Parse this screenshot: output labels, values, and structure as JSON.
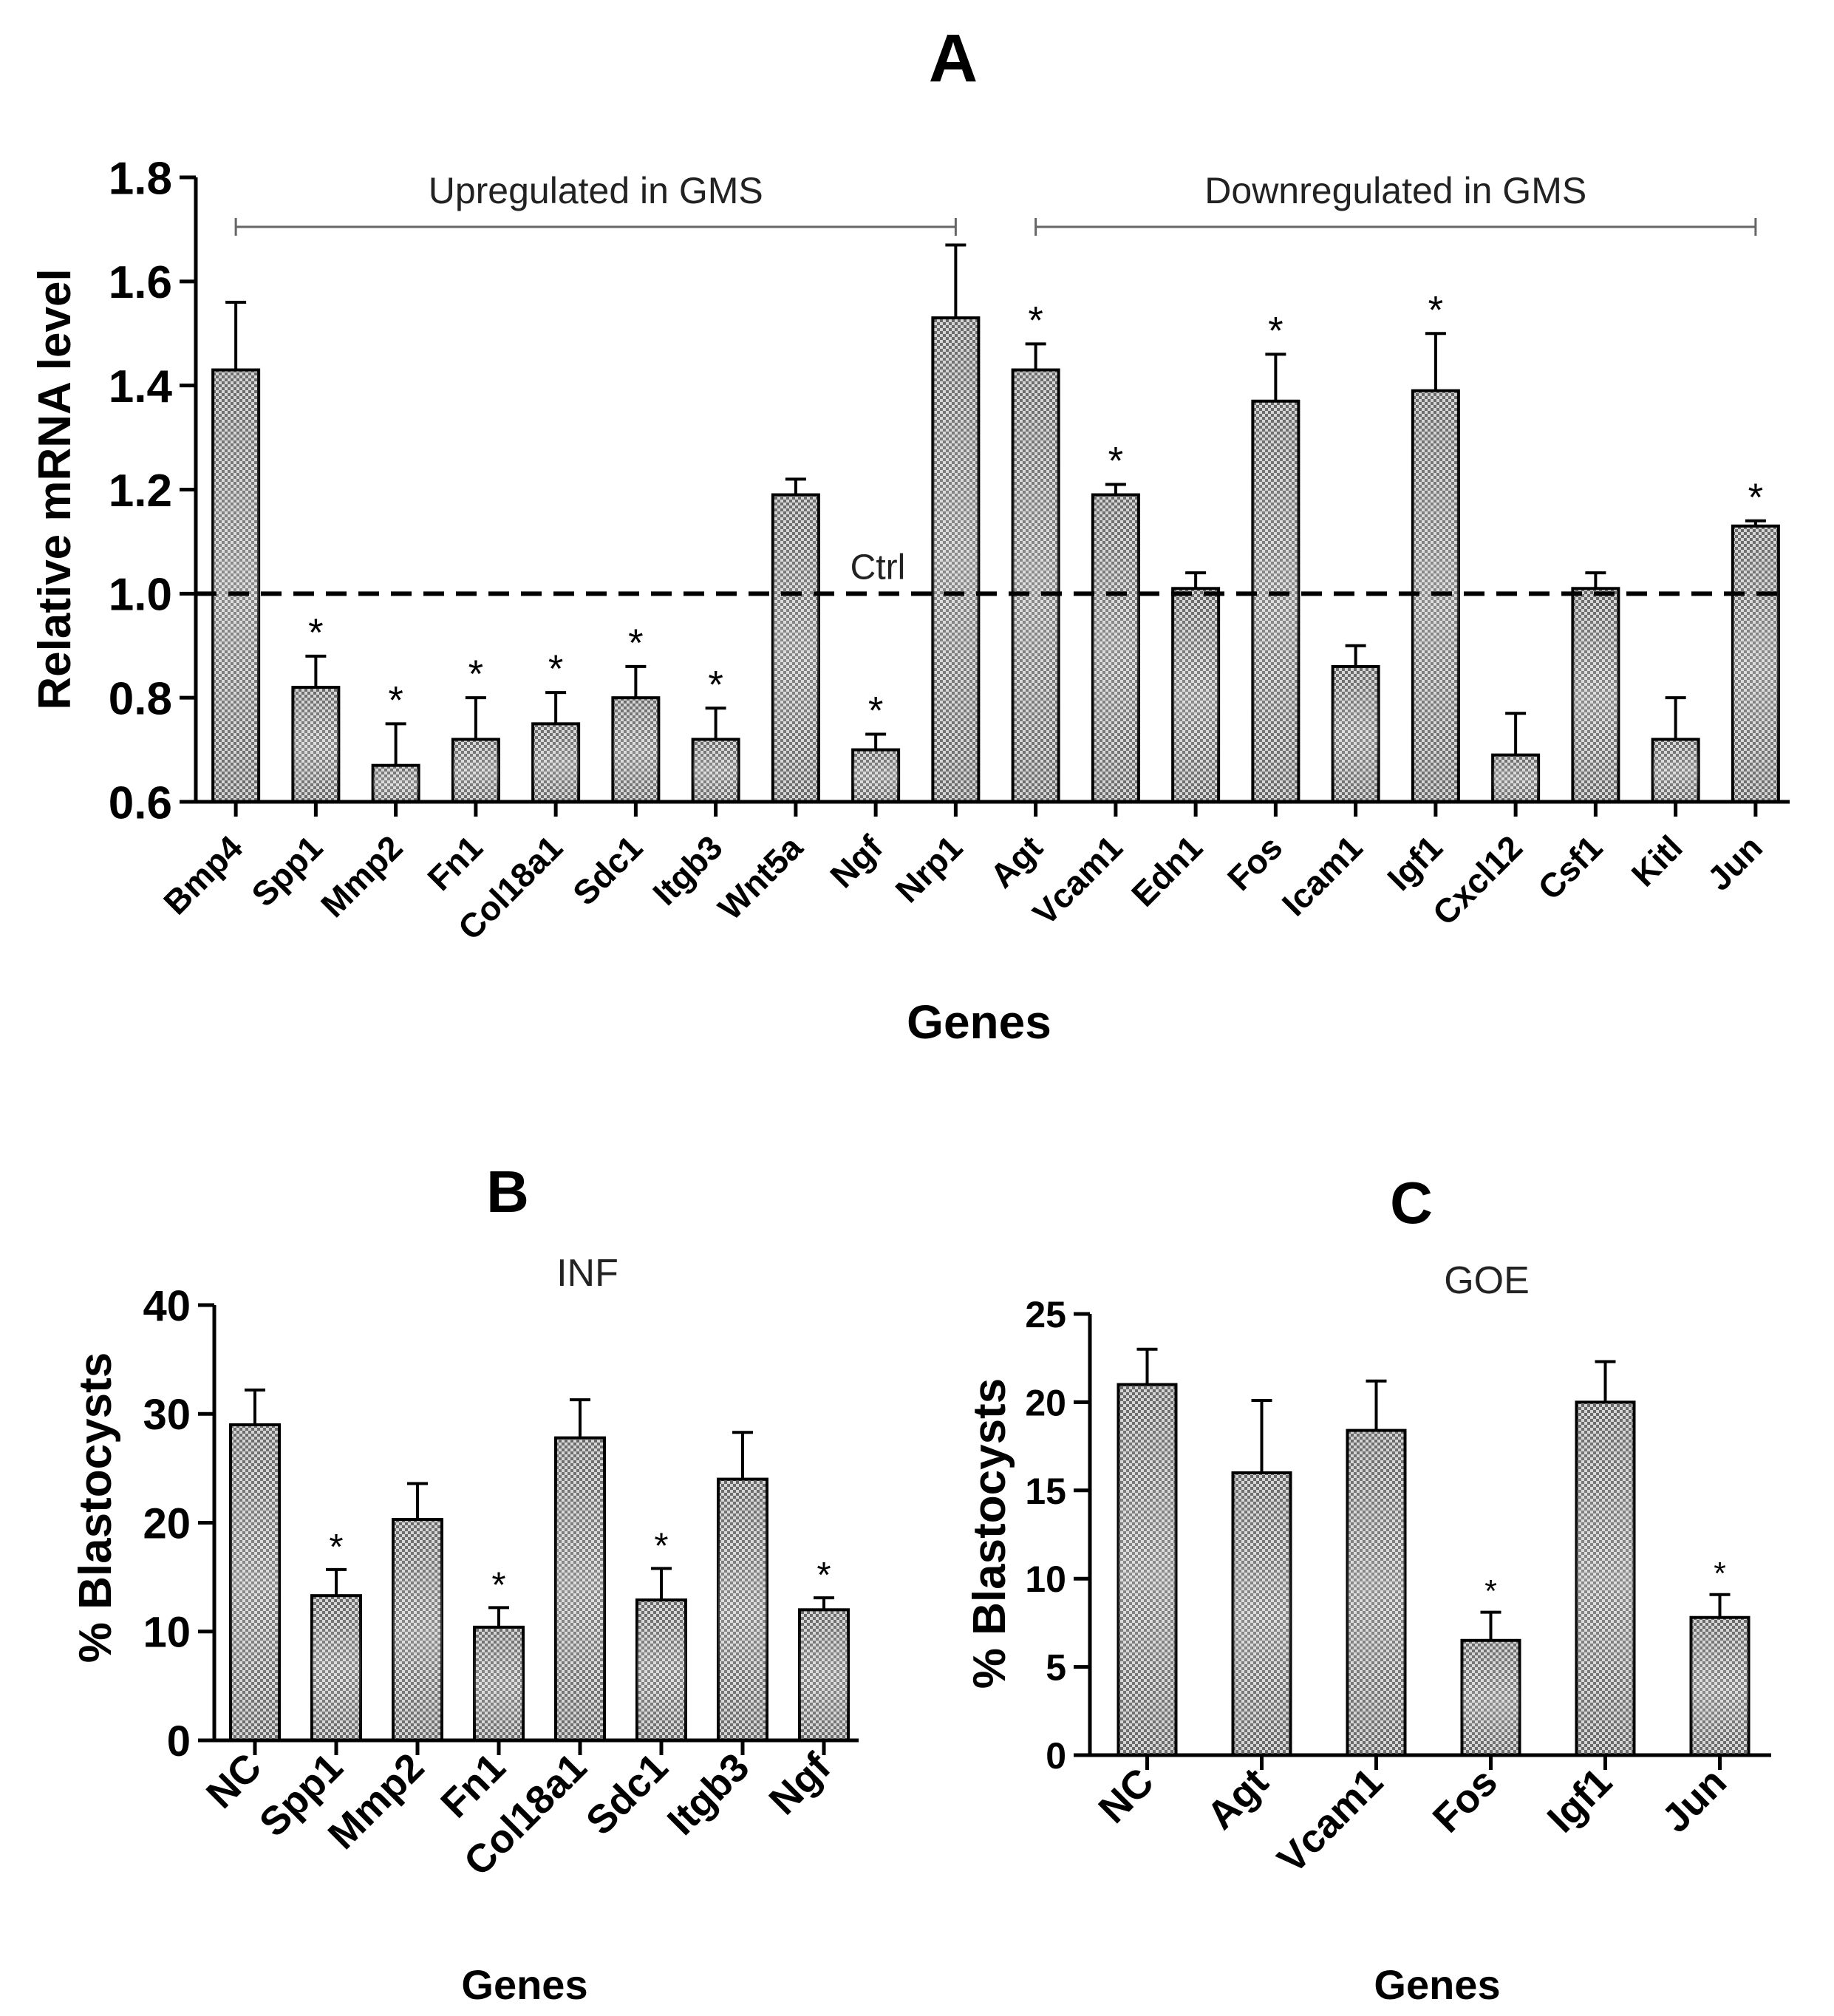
{
  "colors": {
    "bar_dark": "#555555",
    "bar_light": "#d9d9d9",
    "axis": "#000000",
    "bracket": "#666666"
  },
  "chart_data": [
    {
      "panel": "A",
      "type": "bar",
      "xlabel": "Genes",
      "ylabel": "Relative mRNA level",
      "ylim": [
        0.6,
        1.8
      ],
      "yticks": [
        "0.6",
        "0.8",
        "1.0",
        "1.2",
        "1.4",
        "1.6",
        "1.8"
      ],
      "categories": [
        "Bmp4",
        "Spp1",
        "Mmp2",
        "Fn1",
        "Col18a1",
        "Sdc1",
        "Itgb3",
        "Wnt5a",
        "Ngf",
        "Nrp1",
        "Agt",
        "Vcam1",
        "Edn1",
        "Fos",
        "Icam1",
        "Igf1",
        "Cxcl12",
        "Csf1",
        "Kitl",
        "Jun"
      ],
      "values": [
        1.43,
        0.82,
        0.67,
        0.72,
        0.75,
        0.8,
        0.72,
        1.19,
        0.7,
        1.53,
        1.43,
        1.19,
        1.01,
        1.37,
        0.86,
        1.39,
        0.69,
        1.01,
        0.72,
        1.13
      ],
      "errors": [
        0.13,
        0.06,
        0.08,
        0.08,
        0.06,
        0.06,
        0.06,
        0.03,
        0.03,
        0.14,
        0.05,
        0.02,
        0.03,
        0.09,
        0.04,
        0.11,
        0.08,
        0.03,
        0.08,
        0.01
      ],
      "significant": [
        false,
        true,
        true,
        true,
        true,
        true,
        true,
        false,
        true,
        false,
        true,
        true,
        false,
        true,
        false,
        true,
        false,
        false,
        false,
        true
      ],
      "reference_line": {
        "value": 1.0,
        "label": "Ctrl"
      },
      "groups": [
        {
          "label": "Upregulated in GMS",
          "from": 0,
          "to": 9
        },
        {
          "label": "Downregulated in GMS",
          "from": 10,
          "to": 19
        }
      ],
      "star_symbol": "*"
    },
    {
      "panel": "B",
      "type": "bar",
      "title": "INF",
      "xlabel": "Genes",
      "ylabel": "% Blastocysts",
      "ylim": [
        0,
        40
      ],
      "yticks": [
        "0",
        "10",
        "20",
        "30",
        "40"
      ],
      "categories": [
        "NC",
        "Spp1",
        "Mmp2",
        "Fn1",
        "Col18a1",
        "Sdc1",
        "Itgb3",
        "Ngf"
      ],
      "values": [
        29,
        13.3,
        20.3,
        10.4,
        27.8,
        12.9,
        24,
        12
      ],
      "errors": [
        3.2,
        2.4,
        3.3,
        1.8,
        3.5,
        2.9,
        4.3,
        1.1
      ],
      "significant": [
        false,
        true,
        false,
        true,
        false,
        true,
        false,
        true
      ],
      "star_symbol": "*"
    },
    {
      "panel": "C",
      "type": "bar",
      "title": "GOE",
      "xlabel": "Genes",
      "ylabel": "% Blastocysts",
      "ylim": [
        0,
        25
      ],
      "yticks": [
        "0",
        "5",
        "10",
        "15",
        "20",
        "25"
      ],
      "categories": [
        "NC",
        "Agt",
        "Vcam1",
        "Fos",
        "Igf1",
        "Jun"
      ],
      "values": [
        21,
        16,
        18.4,
        6.5,
        20,
        7.8
      ],
      "errors": [
        2,
        4.1,
        2.8,
        1.6,
        2.3,
        1.3
      ],
      "significant": [
        false,
        false,
        false,
        true,
        false,
        true
      ],
      "star_symbol": "*"
    }
  ]
}
